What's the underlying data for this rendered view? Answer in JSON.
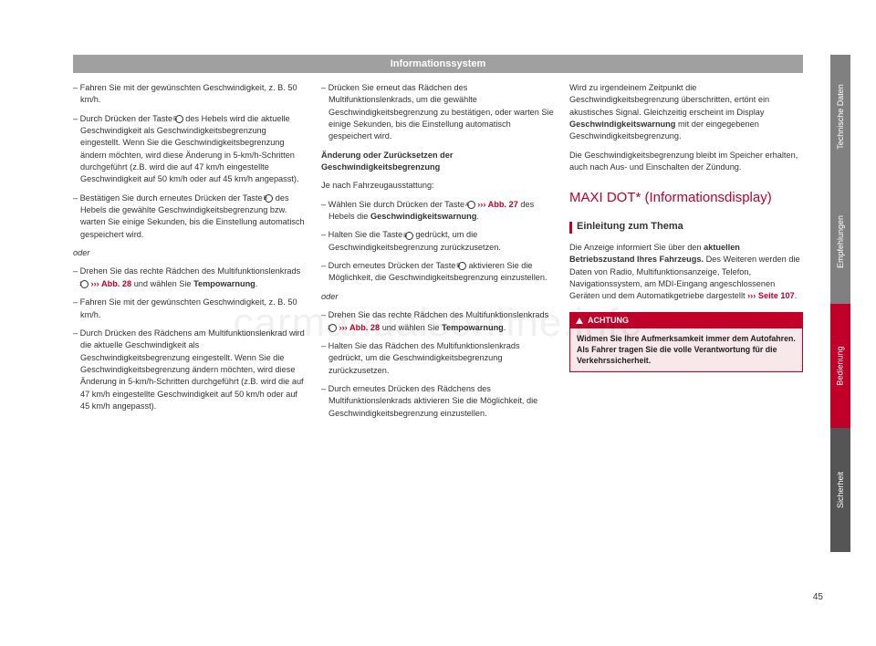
{
  "header": {
    "title": "Informationssystem"
  },
  "col1": {
    "p1": "– Fahren Sie mit der gewünschten Geschwindigkeit, z. B. 50 km/h.",
    "p2a": "– Durch Drücken der Taste ",
    "p2circ": "B",
    "p2b": " des Hebels wird die aktuelle Geschwindigkeit als Geschwindigkeitsbegrenzung eingestellt. Wenn Sie die Geschwindigkeitsbegrenzung ändern möchten, wird diese Änderung in 5-km/h-Schritten durchgeführt (z.B. wird die auf 47 km/h eingestellte Geschwindigkeit auf 50 km/h oder auf 45 km/h angepasst).",
    "p3a": "– Bestätigen Sie durch erneutes Drücken der Taste ",
    "p3circ": "B",
    "p3b": " des Hebels die gewählte Geschwindigkeitsbegrenzung bzw. warten Sie einige Sekunden, bis die Einstellung automatisch gespeichert wird.",
    "oder": "oder",
    "p4a": "– Drehen Sie das rechte Rädchen des Multifunktionslenkrads ",
    "p4circ": "1",
    "p4link": " ››› Abb. 28",
    "p4b": " und wählen Sie ",
    "p4bold": "Tempowarnung",
    "p4c": ".",
    "p5": "– Fahren Sie mit der gewünschten Geschwindigkeit, z. B. 50 km/h.",
    "p6": "– Durch Drücken des Rädchens am Multifunktionslenkrad wird die aktuelle Geschwindigkeit als Geschwindigkeitsbegrenzung eingestellt. Wenn Sie die Geschwindigkeitsbegrenzung ändern möchten, wird diese Änderung in 5-km/h-Schritten durchgeführt (z.B. wird die auf 47 km/h eingestellte Geschwindigkeit auf 50 km/h oder auf 45 km/h angepasst)."
  },
  "col2": {
    "p1": "– Drücken Sie erneut das Rädchen des Multifunktionslenkrads, um die gewählte Geschwindigkeitsbegrenzung zu bestätigen, oder warten Sie einige Sekunden, bis die Einstellung automatisch gespeichert wird.",
    "sub": "Änderung oder Zurücksetzen der Geschwindigkeitsbegrenzung",
    "p2": "Je nach Fahrzeugausstattung:",
    "p3a": "– Wählen Sie durch Drücken der Taste ",
    "p3circ": "A",
    "p3link": "››› Abb. 27",
    "p3b": " des Hebels die ",
    "p3bold": "Geschwindigkeitswarnung",
    "p3c": ".",
    "p4a": "– Halten Sie die Taste ",
    "p4circ": "B",
    "p4b": " gedrückt, um die Geschwindigkeitsbegrenzung zurückzusetzen.",
    "p5a": "– Durch erneutes Drücken der Taste ",
    "p5circ": "B",
    "p5b": " aktivieren Sie die Möglichkeit, die Geschwindigkeitsbegrenzung einzustellen.",
    "oder": "oder",
    "p6a": "– Drehen Sie das rechte Rädchen des Multifunktionslenkrads ",
    "p6circ": "1",
    "p6link": " ››› Abb. 28",
    "p6b": " und wählen Sie ",
    "p6bold": "Tempowarnung",
    "p6c": ".",
    "p7": "– Halten Sie das Rädchen des Multifunktionslenkrads gedrückt, um die Geschwindigkeitsbegrenzung zurückzusetzen.",
    "p8": "– Durch erneutes Drücken des Rädchens des Multifunktionslenkrads aktivieren Sie die Möglichkeit, die Geschwindigkeitsbegrenzung einzustellen."
  },
  "col3": {
    "p1a": "Wird zu irgendeinem Zeitpunkt die Geschwindigkeitsbegrenzung überschritten, ertönt ein akustisches Signal. Gleichzeitig erscheint im Display ",
    "p1bold": "Geschwindigkeitswarnung",
    "p1b": " mit der eingegebenen Geschwindigkeitsbegrenzung.",
    "p2": "Die Geschwindigkeitsbegrenzung bleibt im Speicher erhalten, auch nach Aus- und Einschalten der Zündung.",
    "h2": "MAXI DOT* (Informationsdisplay)",
    "h3": "Einleitung zum Thema",
    "p3a": "Die Anzeige informiert Sie über den ",
    "p3bold": "aktuellen Betriebszustand Ihres Fahrzeugs.",
    "p3b": " Des Weiteren werden die Daten von Radio, Multifunktionsanzeige, Telefon, Navigationssystem, am MDI-Eingang angeschlossenen Geräten und dem Automatikgetriebe dargestellt ",
    "p3link": "››› Seite 107",
    "p3c": ".",
    "warn_title": "ACHTUNG",
    "warn_body": "Widmen Sie Ihre Aufmerksamkeit immer dem Autofahren. Als Fahrer tragen Sie die volle Verantwortung für die Verkehrssicherheit."
  },
  "tabs": {
    "t1": "Technische Daten",
    "t2": "Empfehlungen",
    "t3": "Bedienung",
    "t4": "Sicherheit"
  },
  "pagenum": "45",
  "watermark": "carmanualsonline.info"
}
